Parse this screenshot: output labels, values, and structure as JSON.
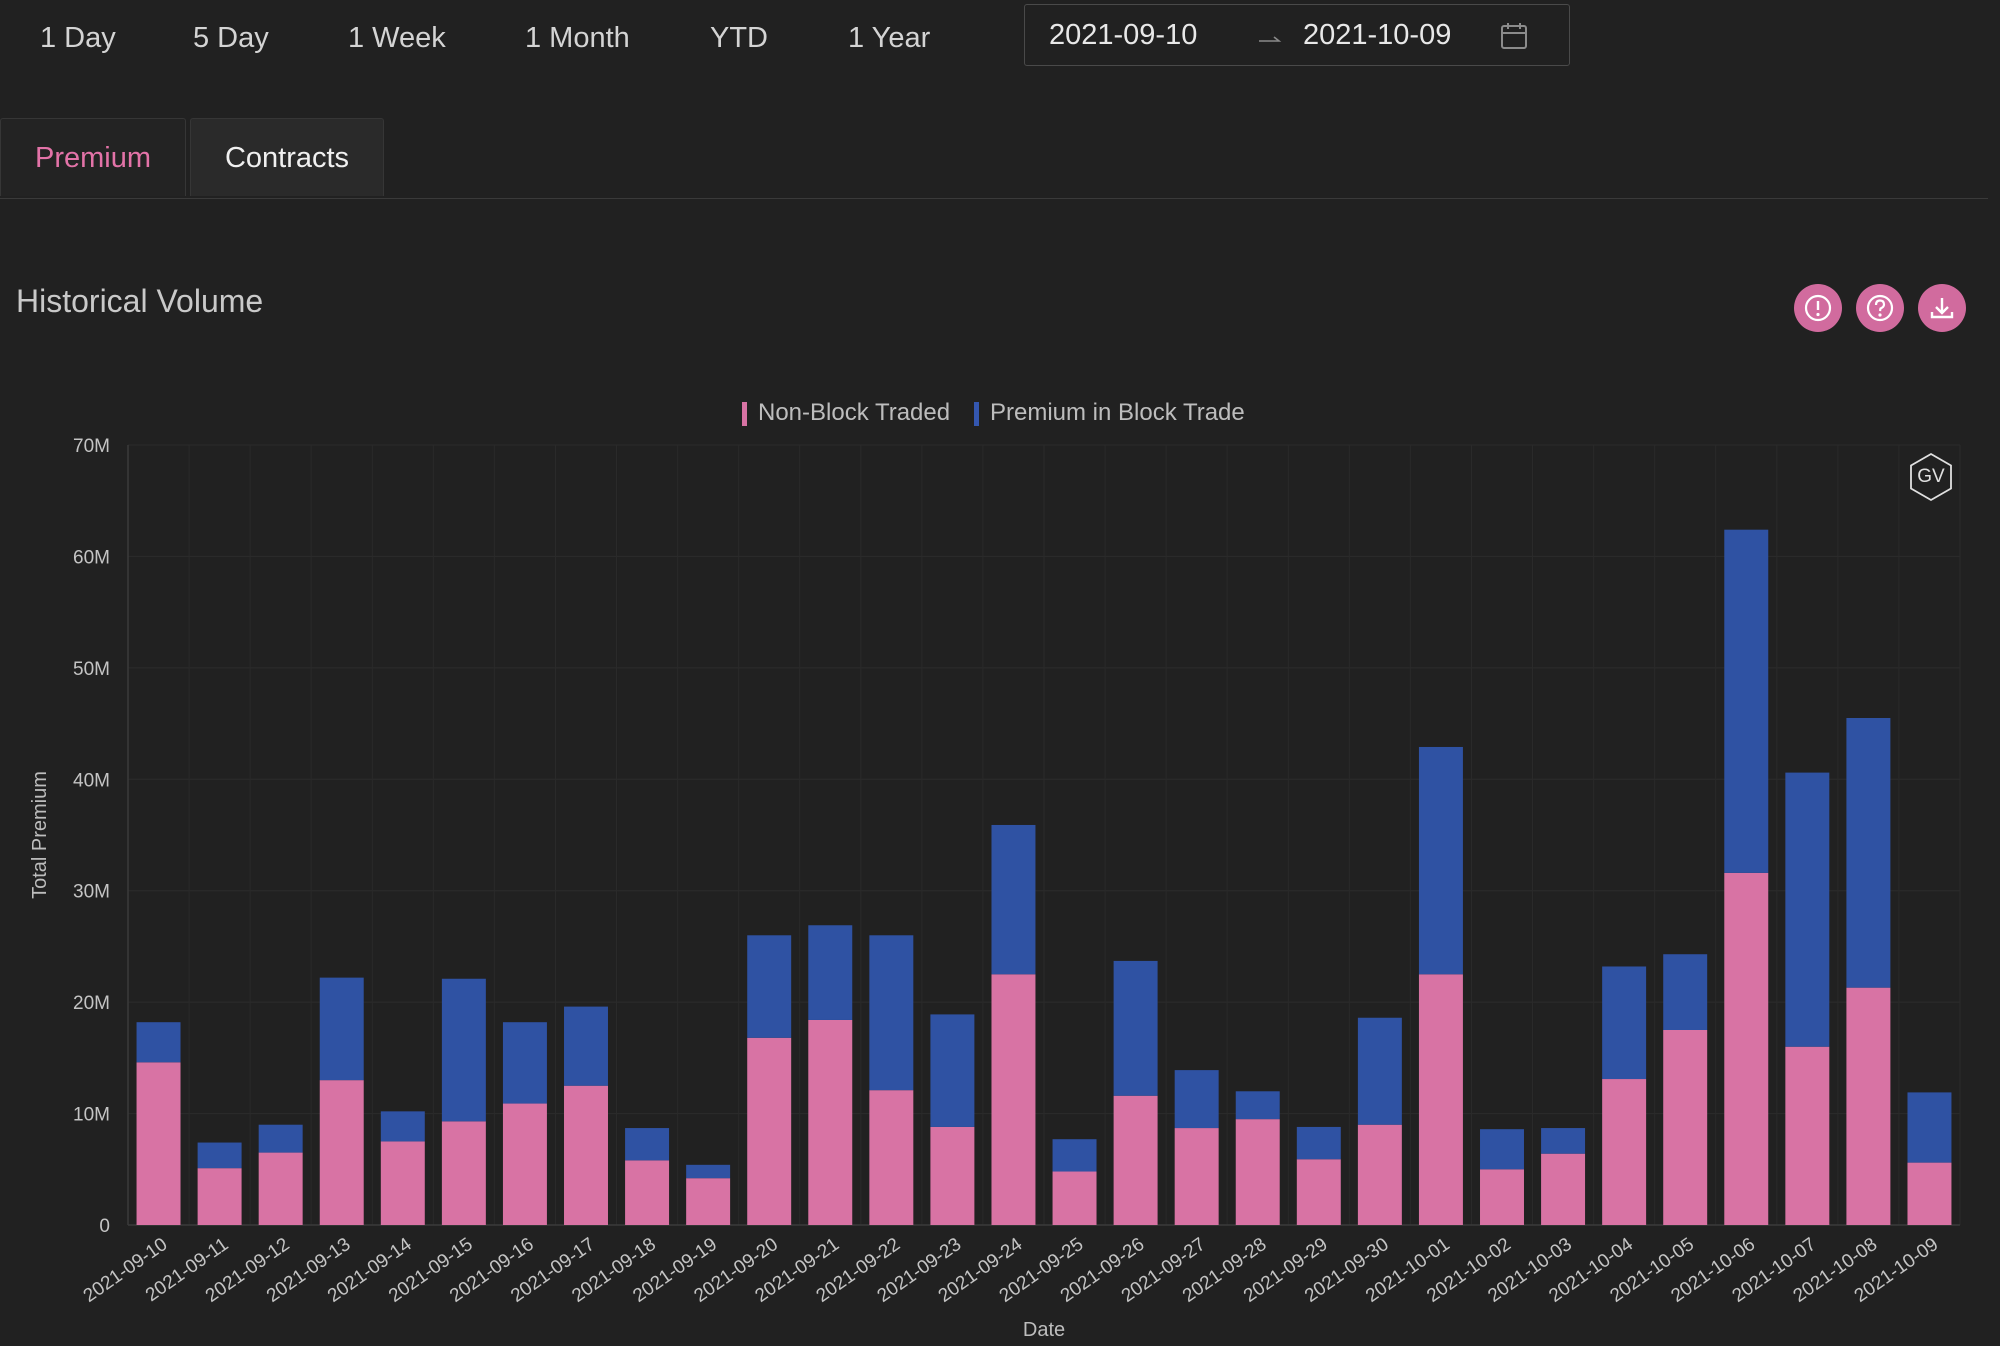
{
  "range_buttons": [
    "1 Day",
    "5 Day",
    "1 Week",
    "1 Month",
    "YTD",
    "1 Year"
  ],
  "date_range": {
    "start": "2021-09-10",
    "end": "2021-10-09"
  },
  "tabs": {
    "premium": "Premium",
    "contracts": "Contracts"
  },
  "section_title": "Historical Volume",
  "icons": {
    "info": "exclamation-circle-icon",
    "help": "question-circle-icon",
    "download": "download-icon",
    "calendar": "calendar-icon"
  },
  "watermark": "GV",
  "colors": {
    "non_block": "#d873a4",
    "block": "#2f52a3",
    "accent": "#d16b9e",
    "background": "#212121"
  },
  "chart_data": {
    "type": "bar",
    "stacked": true,
    "title": "",
    "xlabel": "Date",
    "ylabel": "Total Premium",
    "ylim": [
      0,
      70000000
    ],
    "yticks": [
      "0",
      "10M",
      "20M",
      "30M",
      "40M",
      "50M",
      "60M",
      "70M"
    ],
    "grid": true,
    "legend_position": "top-center",
    "categories": [
      "2021-09-10",
      "2021-09-11",
      "2021-09-12",
      "2021-09-13",
      "2021-09-14",
      "2021-09-15",
      "2021-09-16",
      "2021-09-17",
      "2021-09-18",
      "2021-09-19",
      "2021-09-20",
      "2021-09-21",
      "2021-09-22",
      "2021-09-23",
      "2021-09-24",
      "2021-09-25",
      "2021-09-26",
      "2021-09-27",
      "2021-09-28",
      "2021-09-29",
      "2021-09-30",
      "2021-10-01",
      "2021-10-02",
      "2021-10-03",
      "2021-10-04",
      "2021-10-05",
      "2021-10-06",
      "2021-10-07",
      "2021-10-08",
      "2021-10-09"
    ],
    "series": [
      {
        "name": "Non-Block Traded",
        "color": "#d873a4",
        "values": [
          14.6,
          5.1,
          6.5,
          13.0,
          7.5,
          9.3,
          10.9,
          12.5,
          5.8,
          4.2,
          16.8,
          18.4,
          12.1,
          8.8,
          22.5,
          4.8,
          11.6,
          8.7,
          9.5,
          5.9,
          9.0,
          22.5,
          5.0,
          6.4,
          13.1,
          17.5,
          31.6,
          16.0,
          21.3,
          5.6
        ]
      },
      {
        "name": "Premium in Block Trade",
        "color": "#2f52a3",
        "values": [
          3.6,
          2.3,
          2.5,
          9.2,
          2.7,
          12.8,
          7.3,
          7.1,
          2.9,
          1.2,
          9.2,
          8.5,
          13.9,
          10.1,
          13.4,
          2.9,
          12.1,
          5.2,
          2.5,
          2.9,
          9.6,
          20.4,
          3.6,
          2.3,
          10.1,
          6.8,
          30.8,
          24.6,
          24.2,
          6.3
        ]
      }
    ],
    "value_unit": "M"
  }
}
